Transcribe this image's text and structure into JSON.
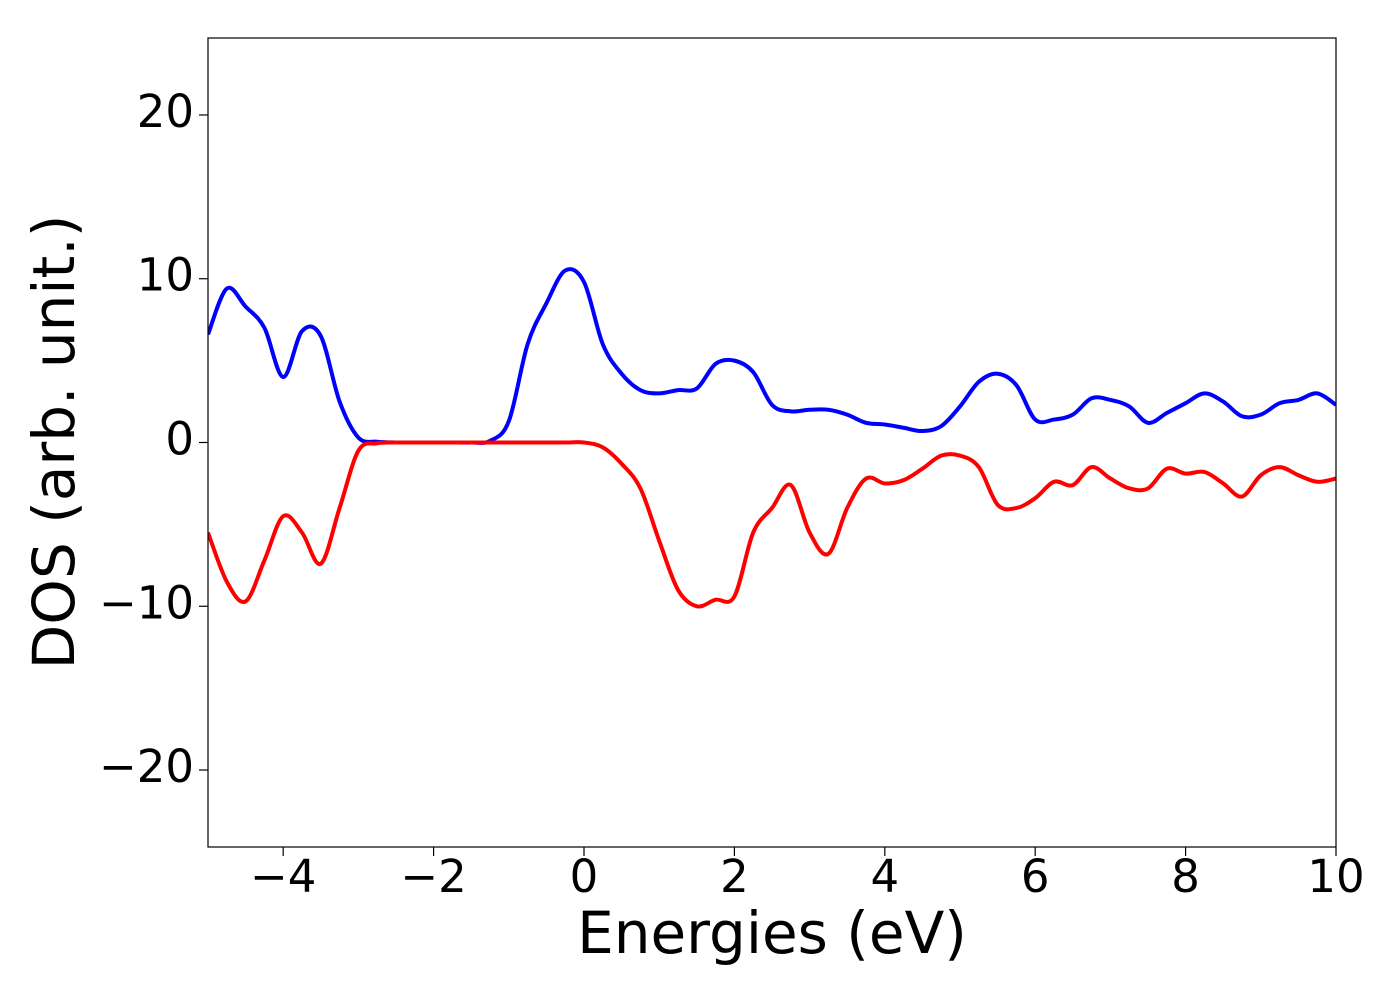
{
  "chart_data": {
    "type": "line",
    "xlabel": "Energies (eV)",
    "ylabel": "DOS (arb. unit.)",
    "xlim": [
      -5,
      10
    ],
    "ylim": [
      -24.7,
      24.7
    ],
    "xticks": [
      {
        "value": -4,
        "label": "−4"
      },
      {
        "value": -2,
        "label": "−2"
      },
      0,
      2,
      4,
      6,
      8,
      10
    ],
    "yticks": [
      {
        "value": -20,
        "label": "−20"
      },
      {
        "value": -10,
        "label": "−10"
      },
      0,
      10,
      20
    ],
    "x": [
      -5,
      -4.75,
      -4.5,
      -4.25,
      -4,
      -3.75,
      -3.5,
      -3.25,
      -3,
      -2.75,
      -2.5,
      -2.25,
      -2,
      -1.75,
      -1.5,
      -1.25,
      -1,
      -0.75,
      -0.5,
      -0.25,
      0,
      0.25,
      0.5,
      0.75,
      1,
      1.25,
      1.5,
      1.75,
      2,
      2.25,
      2.5,
      2.75,
      3,
      3.25,
      3.5,
      3.75,
      4,
      4.25,
      4.5,
      4.75,
      5,
      5.25,
      5.5,
      5.75,
      6,
      6.25,
      6.5,
      6.75,
      7,
      7.25,
      7.5,
      7.75,
      8,
      8.25,
      8.5,
      8.75,
      9,
      9.25,
      9.5,
      9.75,
      10
    ],
    "series": [
      {
        "color": "#0000ff",
        "values": [
          6.6,
          9.4,
          8.3,
          7.0,
          4.0,
          6.8,
          6.5,
          2.5,
          0.3,
          0.05,
          0,
          0,
          0,
          0,
          0,
          0.1,
          1.3,
          6.0,
          8.5,
          10.5,
          9.8,
          6.0,
          4.2,
          3.2,
          3.0,
          3.2,
          3.3,
          4.8,
          5.0,
          4.3,
          2.3,
          1.9,
          2.0,
          2.0,
          1.7,
          1.2,
          1.1,
          0.9,
          0.7,
          1.0,
          2.2,
          3.7,
          4.2,
          3.5,
          1.4,
          1.4,
          1.7,
          2.7,
          2.6,
          2.2,
          1.2,
          1.8,
          2.4,
          3.0,
          2.5,
          1.6,
          1.7,
          2.4,
          2.6,
          3.0,
          2.3
        ]
      },
      {
        "color": "#ff0000",
        "values": [
          -5.5,
          -8.5,
          -9.7,
          -7.2,
          -4.5,
          -5.5,
          -7.4,
          -4.0,
          -0.5,
          -0.05,
          0,
          0,
          0,
          0,
          0,
          0,
          0,
          0,
          0,
          0,
          0,
          -0.3,
          -1.3,
          -2.8,
          -6.0,
          -9.0,
          -10.0,
          -9.6,
          -9.4,
          -5.5,
          -4.0,
          -2.6,
          -5.5,
          -6.8,
          -4.0,
          -2.2,
          -2.5,
          -2.3,
          -1.6,
          -0.8,
          -0.8,
          -1.5,
          -3.8,
          -4.0,
          -3.4,
          -2.4,
          -2.6,
          -1.5,
          -2.2,
          -2.8,
          -2.8,
          -1.6,
          -1.9,
          -1.8,
          -2.5,
          -3.3,
          -2.0,
          -1.5,
          -2.0,
          -2.4,
          -2.2
        ]
      }
    ]
  }
}
